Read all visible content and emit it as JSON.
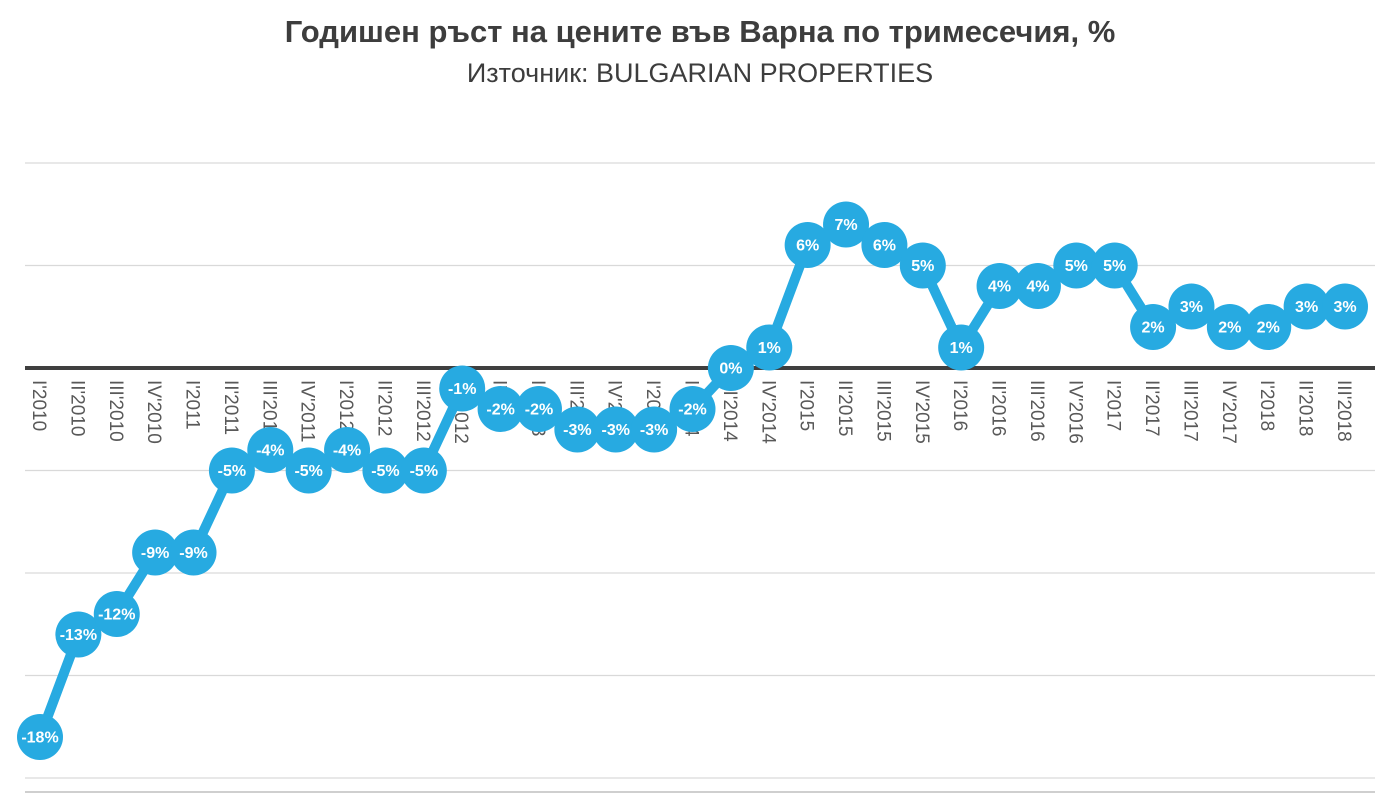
{
  "header": {
    "title": "Годишен ръст на цените във Варна по тримесечия, %",
    "subtitle": "Източник: BULGARIAN PROPERTIES"
  },
  "chart_data": {
    "type": "line",
    "title": "Годишен ръст на цените във Варна по тримесечия, %",
    "subtitle": "Източник: BULGARIAN PROPERTIES",
    "xlabel": "",
    "ylabel": "",
    "ylim": [
      -20,
      10
    ],
    "grid_step": 5,
    "grid": true,
    "legend": false,
    "value_suffix": "%",
    "categories": [
      "I'2010",
      "II'2010",
      "III'2010",
      "IV'2010",
      "I'2011",
      "II'2011",
      "III'2011",
      "IV'2011",
      "I'2012",
      "II'2012",
      "III'2012",
      "IV'2012",
      "I'2013",
      "II'2013",
      "III'2013",
      "IV'2013",
      "I'2014",
      "II'2014",
      "III'2014",
      "IV'2014",
      "I'2015",
      "II'2015",
      "III'2015",
      "IV'2015",
      "I'2016",
      "II'2016",
      "III'2016",
      "IV'2016",
      "I'2017",
      "II'2017",
      "III'2017",
      "IV'2017",
      "I'2018",
      "II'2018",
      "III'2018"
    ],
    "values": [
      -18,
      -13,
      -12,
      -9,
      -9,
      -5,
      -4,
      -5,
      -4,
      -5,
      -5,
      -1,
      -2,
      -2,
      -3,
      -3,
      -3,
      -2,
      0,
      1,
      6,
      7,
      6,
      5,
      1,
      4,
      4,
      5,
      5,
      2,
      3,
      2,
      2,
      3,
      3
    ],
    "colors": {
      "marker": "#27AAE1",
      "line": "#27AAE1",
      "marker_label": "#FFFFFF",
      "axis_label": "#595959",
      "gridline": "#D9D9D9",
      "bottom_border": "#BFBFBF",
      "zero_axis": "#3F3F3F",
      "title": "#3D3D3D"
    }
  }
}
